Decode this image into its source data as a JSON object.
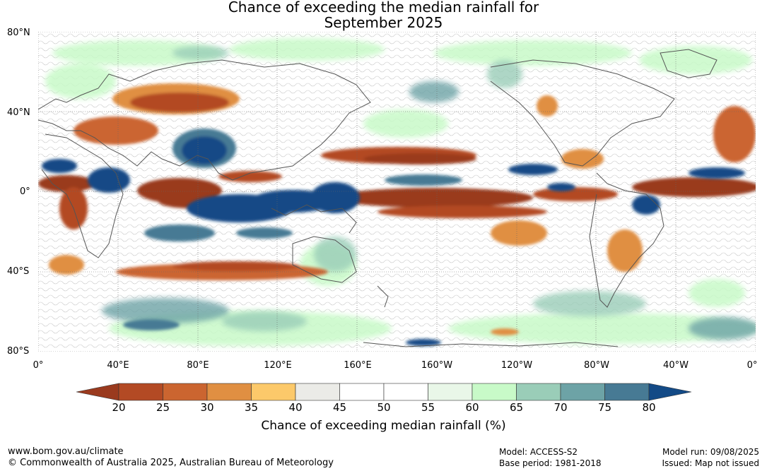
{
  "title_line1": "Chance of exceeding the median rainfall for",
  "title_line2": "September 2025",
  "lat_labels": [
    "80°N",
    "40°N",
    "0°",
    "40°S",
    "80°S"
  ],
  "lon_labels": [
    "0°",
    "40°E",
    "80°E",
    "120°E",
    "160°E",
    "160°W",
    "120°W",
    "80°W",
    "40°W",
    "0°"
  ],
  "colorbar": {
    "ticks": [
      "20",
      "25",
      "30",
      "35",
      "40",
      "45",
      "50",
      "55",
      "60",
      "65",
      "70",
      "75",
      "80"
    ],
    "colors": [
      "#9a3a1e",
      "#b34a24",
      "#cb6530",
      "#e08f42",
      "#fcc96a",
      "#ebebe7",
      "#ffffff",
      "#ffffff",
      "#e9f7e8",
      "#c8fac8",
      "#9acdb8",
      "#6da3a6",
      "#477a94",
      "#134a86"
    ],
    "label": "Chance of exceeding median rainfall (%)"
  },
  "footer": {
    "website": "www.bom.gov.au/climate",
    "copyright": "© Commonwealth of Australia 2025, Australian Bureau of Meteorology",
    "model": "Model: ACCESS-S2",
    "base_period": "Base period: 1981-2018",
    "model_run": "Model run: 09/08/2025",
    "issued": "Issued: Map not issued"
  }
}
